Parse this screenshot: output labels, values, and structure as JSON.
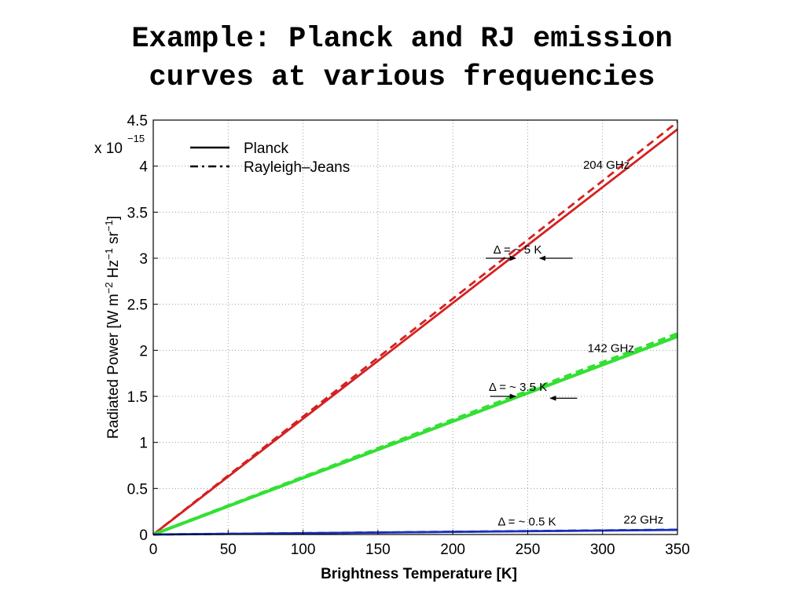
{
  "slide": {
    "title_line1": "Example: Planck and RJ emission",
    "title_line2": "curves at various frequencies"
  },
  "colors": {
    "f204": "#d42020",
    "f142": "#33e033",
    "f22": "#1a2fb8"
  },
  "chart_data": {
    "type": "line",
    "xlabel": "Brightness Temperature [K]",
    "ylabel": "Radiated Power [W m^-2 Hz^-1 sr^-1]",
    "y_exponent": "x 10^-15",
    "xlim": [
      0,
      350
    ],
    "ylim": [
      0,
      4.5
    ],
    "xticks": [
      0,
      50,
      100,
      150,
      200,
      250,
      300,
      350
    ],
    "yticks": [
      0,
      0.5,
      1,
      1.5,
      2,
      2.5,
      3,
      3.5,
      4,
      4.5
    ],
    "grid": true,
    "legend": {
      "placement": "top-left",
      "entries": [
        "Planck",
        "Rayleigh–Jeans"
      ]
    },
    "series": [
      {
        "name": "Planck",
        "group": "204 GHz",
        "style": "solid",
        "color": "f204",
        "x": [
          0,
          350
        ],
        "y": [
          0,
          4.4
        ]
      },
      {
        "name": "Rayleigh–Jeans",
        "group": "204 GHz",
        "style": "dashed",
        "color": "f204",
        "x": [
          0,
          350
        ],
        "y": [
          0,
          4.48
        ]
      },
      {
        "name": "Planck",
        "group": "142 GHz",
        "style": "solid",
        "color": "f142",
        "x": [
          0,
          350
        ],
        "y": [
          0,
          2.15
        ]
      },
      {
        "name": "Rayleigh–Jeans",
        "group": "142 GHz",
        "style": "dashed",
        "color": "f142",
        "x": [
          0,
          350
        ],
        "y": [
          0,
          2.18
        ]
      },
      {
        "name": "Planck",
        "group": "22 GHz",
        "style": "solid",
        "color": "f22",
        "x": [
          0,
          350
        ],
        "y": [
          0,
          0.05
        ]
      },
      {
        "name": "Rayleigh–Jeans",
        "group": "22 GHz",
        "style": "dashed",
        "color": "f22",
        "x": [
          0,
          350
        ],
        "y": [
          0,
          0.052
        ]
      }
    ],
    "annotations": {
      "label_204": {
        "text": "204 GHz",
        "x": 287,
        "y": 3.97
      },
      "label_142": {
        "text": "142 GHz",
        "x": 290,
        "y": 1.98
      },
      "label_22": {
        "text": "22 GHz",
        "x": 314,
        "y": 0.12
      },
      "delta_204": {
        "text": "Δ = ~ 5 K",
        "x": 227,
        "y": 3.05
      },
      "delta_142": {
        "text": "Δ = ~ 3.5 K",
        "x": 224,
        "y": 1.56
      },
      "delta_22": {
        "text": "Δ = ~ 0.5 K",
        "x": 230,
        "y": 0.1
      },
      "arrows": [
        {
          "from": [
            222,
            3.0
          ],
          "to": [
            242,
            3.0
          ]
        },
        {
          "from": [
            280,
            3.0
          ],
          "to": [
            258,
            3.0
          ]
        },
        {
          "from": [
            225,
            1.5
          ],
          "to": [
            242,
            1.5
          ]
        },
        {
          "from": [
            283,
            1.48
          ],
          "to": [
            265,
            1.48
          ]
        }
      ]
    }
  }
}
